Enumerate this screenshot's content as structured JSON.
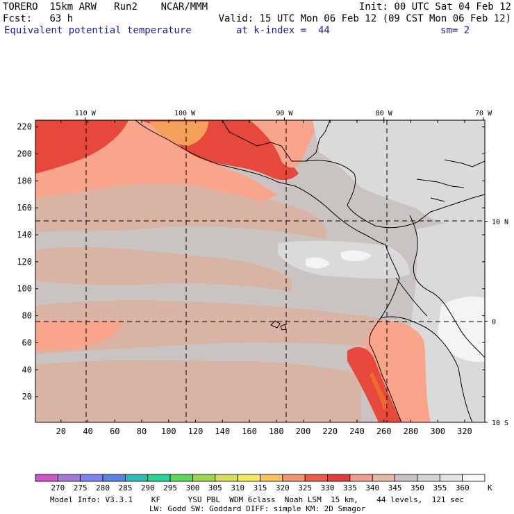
{
  "header": {
    "model": "TORERO",
    "resolution": "15km ARW",
    "run": "Run2",
    "org": "NCAR/MMM",
    "init": "Init: 00 UTC Sat 04 Feb 12",
    "fcst_label": "Fcst:",
    "fcst_value": "63 h",
    "valid": "Valid: 15 UTC Mon 06 Feb 12 (09 CST Mon 06 Feb 12)",
    "field": "Equivalent potential temperature",
    "kindex": "at k-index =  44",
    "smooth": "sm= 2"
  },
  "colors": {
    "bg": "#c9c4c2",
    "c330": "#e6483c",
    "c325": "#f26e57",
    "c320": "#f8a58c",
    "c335": "#ec6a2e",
    "c345": "#d9b4a4",
    "c355": "#dadada",
    "c360": "#f4f4f4",
    "hot": "#f4a05a"
  },
  "footer": {
    "line1": "Model Info: V3.3.1    KF      YSU PBL  WDM 6class  Noah LSM  15 km,    44 levels,  121 sec",
    "line2": "LW: Godd SW: Goddard DIFF: simple KM: 2D Smagor"
  },
  "chart_data": {
    "type": "heatmap",
    "title": "Equivalent potential temperature",
    "x_ticks": [
      20,
      40,
      60,
      80,
      100,
      120,
      140,
      160,
      180,
      200,
      220,
      240,
      260,
      280,
      300,
      320
    ],
    "y_ticks": [
      20,
      40,
      60,
      80,
      100,
      120,
      140,
      160,
      180,
      200,
      220
    ],
    "xlim": [
      1,
      335
    ],
    "ylim": [
      1,
      225
    ],
    "lon_labels": [
      {
        "label": "110 W",
        "x": 38
      },
      {
        "label": "100 W",
        "x": 112
      },
      {
        "label": "90 W",
        "x": 186
      },
      {
        "label": "80 W",
        "x": 260
      },
      {
        "label": "70 W",
        "x": 334
      }
    ],
    "lat_labels": [
      {
        "label": "10 N",
        "y": 150
      },
      {
        "label": "0",
        "y": 76
      },
      {
        "label": "10 S",
        "y": 1
      }
    ],
    "colorbar": {
      "unit": "K",
      "levels": [
        270,
        275,
        280,
        285,
        290,
        295,
        300,
        305,
        310,
        315,
        320,
        325,
        330,
        335,
        340,
        345,
        350,
        355,
        360
      ],
      "colors": [
        "#cc55cc",
        "#a07ad6",
        "#8080ee",
        "#5a82e6",
        "#2ebab8",
        "#28d694",
        "#5ad65a",
        "#9ad64e",
        "#d2dc5a",
        "#f4e85c",
        "#f6c25c",
        "#f3946a",
        "#ee5a44",
        "#e23b3b",
        "#f39c8a",
        "#e4b9a8",
        "#cbc3c0",
        "#d2d2d2",
        "#e2e2e2",
        "#f8f8f8"
      ]
    }
  }
}
